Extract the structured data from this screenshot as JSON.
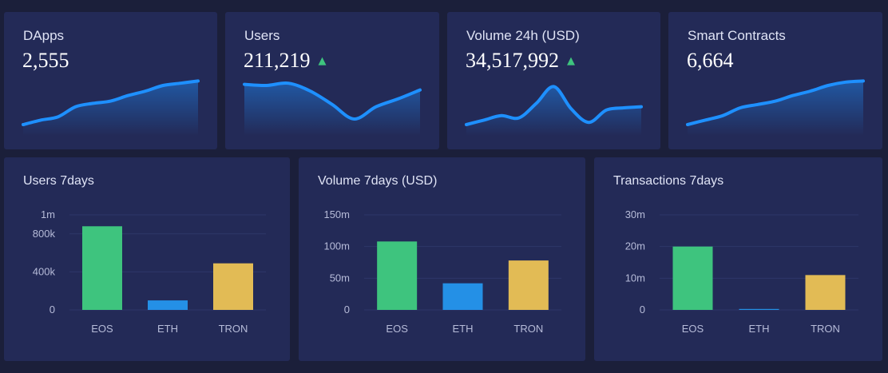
{
  "colors": {
    "background": "#1b1f3a",
    "card": "#232a57",
    "sparkline": "#1e90ff",
    "up_arrow": "#3ec47e",
    "grid": "#2e3768",
    "axis_text": "#b6bbd8"
  },
  "stats": [
    {
      "title": "DApps",
      "value": "2,555",
      "trend": "",
      "icon": "none",
      "spark": [
        10,
        14,
        17,
        26,
        29,
        31,
        36,
        40,
        45,
        47,
        49
      ]
    },
    {
      "title": "Users",
      "value": "211,219",
      "trend": "▲",
      "icon": "up-arrow-icon",
      "spark": [
        46,
        45,
        47,
        40,
        28,
        15,
        26,
        33,
        41
      ]
    },
    {
      "title": "Volume 24h (USD)",
      "value": "34,517,992",
      "trend": "▲",
      "icon": "up-arrow-icon",
      "spark": [
        10,
        14,
        18,
        16,
        29,
        44,
        24,
        12,
        23,
        25,
        26
      ]
    },
    {
      "title": "Smart Contracts",
      "value": "6,664",
      "trend": "",
      "icon": "none",
      "spark": [
        10,
        14,
        18,
        25,
        28,
        31,
        36,
        40,
        45,
        48,
        49
      ]
    }
  ],
  "chart_data": [
    {
      "type": "bar",
      "title": "Users 7days",
      "categories": [
        "EOS",
        "ETH",
        "TRON"
      ],
      "values": [
        880000,
        100000,
        490000
      ],
      "colors": [
        "#3ec47e",
        "#2490e6",
        "#e2bb55"
      ],
      "ylim": [
        0,
        1000000
      ],
      "yticks": [
        {
          "value": 0,
          "label": "0"
        },
        {
          "value": 400000,
          "label": "400k"
        },
        {
          "value": 800000,
          "label": "800k"
        },
        {
          "value": 1000000,
          "label": "1m"
        }
      ],
      "grid": true
    },
    {
      "type": "bar",
      "title": "Volume 7days (USD)",
      "categories": [
        "EOS",
        "ETH",
        "TRON"
      ],
      "values": [
        108000000,
        42000000,
        78000000
      ],
      "colors": [
        "#3ec47e",
        "#2490e6",
        "#e2bb55"
      ],
      "ylim": [
        0,
        150000000
      ],
      "yticks": [
        {
          "value": 0,
          "label": "0"
        },
        {
          "value": 50000000,
          "label": "50m"
        },
        {
          "value": 100000000,
          "label": "100m"
        },
        {
          "value": 150000000,
          "label": "150m"
        }
      ],
      "grid": true
    },
    {
      "type": "bar",
      "title": "Transactions 7days",
      "categories": [
        "EOS",
        "ETH",
        "TRON"
      ],
      "values": [
        20000000,
        300000,
        11000000
      ],
      "colors": [
        "#3ec47e",
        "#2490e6",
        "#e2bb55"
      ],
      "ylim": [
        0,
        30000000
      ],
      "yticks": [
        {
          "value": 0,
          "label": "0"
        },
        {
          "value": 10000000,
          "label": "10m"
        },
        {
          "value": 20000000,
          "label": "20m"
        },
        {
          "value": 30000000,
          "label": "30m"
        }
      ],
      "grid": true
    }
  ]
}
